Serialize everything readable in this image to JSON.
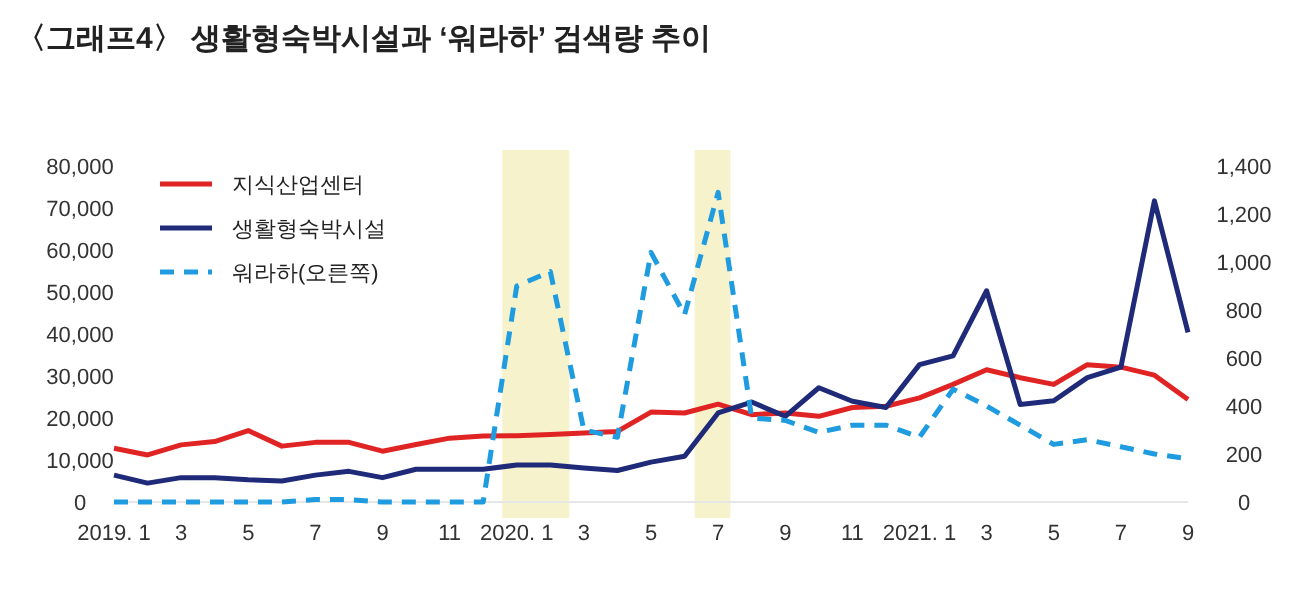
{
  "chart_data": {
    "type": "line",
    "title": "〈그래프4〉 생활형숙박시설과 ‘워라하’ 검색량 추이",
    "x": [
      "2019-01",
      "2019-02",
      "2019-03",
      "2019-04",
      "2019-05",
      "2019-06",
      "2019-07",
      "2019-08",
      "2019-09",
      "2019-10",
      "2019-11",
      "2019-12",
      "2020-01",
      "2020-02",
      "2020-03",
      "2020-04",
      "2020-05",
      "2020-06",
      "2020-07",
      "2020-08",
      "2020-09",
      "2020-10",
      "2020-11",
      "2020-12",
      "2021-01",
      "2021-02",
      "2021-03",
      "2021-04",
      "2021-05",
      "2021-06",
      "2021-07",
      "2021-08",
      "2021-09"
    ],
    "series": [
      {
        "name": "지식산업센터",
        "color": "#e02424",
        "values": [
          12800,
          11200,
          13600,
          14400,
          17000,
          13300,
          14200,
          14200,
          12100,
          13700,
          15200,
          15700,
          15800,
          16100,
          16400,
          16800,
          21400,
          21200,
          23300,
          20800,
          21200,
          20400,
          22500,
          22800,
          24800,
          28000,
          31500,
          29600,
          28000,
          32700,
          32100,
          30200,
          24400
        ]
      },
      {
        "name": "생활형숙박시설",
        "color": "#1f2a78",
        "values": [
          6400,
          4500,
          5800,
          5800,
          5300,
          5000,
          6400,
          7300,
          5800,
          7800,
          7800,
          7800,
          8800,
          8800,
          8100,
          7500,
          9500,
          10900,
          21200,
          23800,
          20400,
          27200,
          24000,
          22500,
          32700,
          34800,
          50300,
          23200,
          24100,
          29600,
          32100,
          71700,
          40400
        ]
      },
      {
        "name": "워라하(오른쪽)",
        "color": "#1f9be0",
        "axis": "y2",
        "line_style": "dashed",
        "values": [
          0,
          0,
          0,
          0,
          0,
          0,
          10,
          10,
          0,
          0,
          0,
          0,
          900,
          960,
          300,
          270,
          1040,
          780,
          1290,
          350,
          340,
          290,
          320,
          320,
          270,
          470,
          400,
          320,
          240,
          260,
          230,
          200,
          180
        ]
      }
    ],
    "xlim": [
      "2019-01",
      "2021-09"
    ],
    "xticks": [
      {
        "value": "2019-01",
        "label": "2019. 1"
      },
      {
        "value": "2019-03",
        "label": "3"
      },
      {
        "value": "2019-05",
        "label": "5"
      },
      {
        "value": "2019-07",
        "label": "7"
      },
      {
        "value": "2019-09",
        "label": "9"
      },
      {
        "value": "2019-11",
        "label": "11"
      },
      {
        "value": "2020-01",
        "label": "2020. 1"
      },
      {
        "value": "2020-03",
        "label": "3"
      },
      {
        "value": "2020-05",
        "label": "5"
      },
      {
        "value": "2020-07",
        "label": "7"
      },
      {
        "value": "2020-09",
        "label": "9"
      },
      {
        "value": "2020-11",
        "label": "11"
      },
      {
        "value": "2021-01",
        "label": "2021. 1"
      },
      {
        "value": "2021-03",
        "label": "3"
      },
      {
        "value": "2021-05",
        "label": "5"
      },
      {
        "value": "2021-07",
        "label": "7"
      },
      {
        "value": "2021-09",
        "label": "9"
      }
    ],
    "ylim": [
      0,
      80000
    ],
    "yticks": [
      {
        "value": 0,
        "label": "0"
      },
      {
        "value": 10000,
        "label": "10,000"
      },
      {
        "value": 20000,
        "label": "20,000"
      },
      {
        "value": 30000,
        "label": "30,000"
      },
      {
        "value": 40000,
        "label": "40,000"
      },
      {
        "value": 50000,
        "label": "50,000"
      },
      {
        "value": 60000,
        "label": "60,000"
      },
      {
        "value": 70000,
        "label": "70,000"
      },
      {
        "value": 80000,
        "label": "80,000"
      }
    ],
    "y2lim": [
      0,
      1400
    ],
    "y2ticks": [
      {
        "value": 0,
        "label": "0"
      },
      {
        "value": 200,
        "label": "200"
      },
      {
        "value": 400,
        "label": "400"
      },
      {
        "value": 600,
        "label": "600"
      },
      {
        "value": 800,
        "label": "800"
      },
      {
        "value": 1000,
        "label": "1,000"
      },
      {
        "value": 1200,
        "label": "1,200"
      },
      {
        "value": 1400,
        "label": "1,400"
      }
    ],
    "bands": [
      {
        "axis": "x",
        "from": "2019-12-18",
        "to": "2020-02-18",
        "color": "#f6f2cc"
      },
      {
        "axis": "x",
        "from": "2020-06-10",
        "to": "2020-07-12",
        "color": "#f6f2cc"
      }
    ],
    "legend": "top left",
    "marker": "none",
    "grid": false
  }
}
